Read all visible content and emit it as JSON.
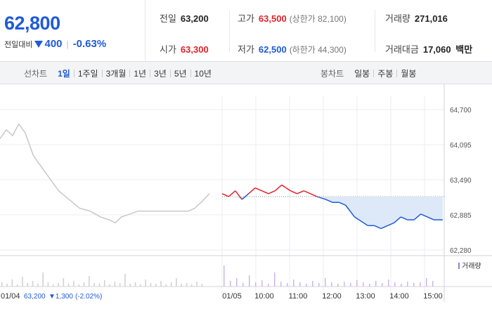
{
  "summary": {
    "price": "62,800",
    "change_label": "전일대비",
    "change_abs": "400",
    "change_pct": "-0.63%",
    "prev_close": {
      "label": "전일",
      "value": "63,200"
    },
    "open": {
      "label": "시가",
      "value": "63,300"
    },
    "high": {
      "label": "고가",
      "value": "63,500",
      "sub": "(상한가 82,100)"
    },
    "low": {
      "label": "저가",
      "value": "62,500",
      "sub": "(하한가 44,300)"
    },
    "volume": {
      "label": "거래량",
      "value": "271,016"
    },
    "amount": {
      "label": "거래대금",
      "value": "17,060",
      "unit": "백만"
    },
    "colors": {
      "up": "#e0222a",
      "down": "#1f5bd6"
    }
  },
  "toolbar": {
    "line_label": "선차트",
    "line_periods": [
      "1일",
      "1주일",
      "3개월",
      "1년",
      "3년",
      "5년",
      "10년"
    ],
    "line_active": 0,
    "candle_label": "봉차트",
    "candle_periods": [
      "일봉",
      "주봉",
      "월봉"
    ]
  },
  "chart_data": {
    "type": "line",
    "y_ticks": [
      "64,700",
      "64,095",
      "63,490",
      "62,885",
      "62,280"
    ],
    "y_tick_values": [
      64700,
      64095,
      63490,
      62885,
      62280
    ],
    "ylim": [
      62280,
      64700
    ],
    "reference_price": 63200,
    "x_labels": [
      "01/04",
      "01/05",
      "10:00",
      "11:00",
      "12:00",
      "13:00",
      "14:00",
      "15:00"
    ],
    "prev_day_info": {
      "date": "01/04",
      "close": "63,200",
      "change": "▼1,300",
      "pct": "(-2.02%)"
    },
    "volume_legend": "거래량",
    "series": [
      {
        "day": "01/04",
        "color": "#c8c8c8",
        "points": [
          [
            0,
            64200
          ],
          [
            0.03,
            64350
          ],
          [
            0.06,
            64250
          ],
          [
            0.09,
            64450
          ],
          [
            0.12,
            64300
          ],
          [
            0.16,
            63900
          ],
          [
            0.2,
            63700
          ],
          [
            0.24,
            63500
          ],
          [
            0.28,
            63300
          ],
          [
            0.33,
            63150
          ],
          [
            0.38,
            63000
          ],
          [
            0.43,
            62950
          ],
          [
            0.48,
            62850
          ],
          [
            0.52,
            62800
          ],
          [
            0.55,
            62750
          ],
          [
            0.58,
            62850
          ],
          [
            0.62,
            62900
          ],
          [
            0.66,
            62950
          ],
          [
            0.7,
            62950
          ],
          [
            0.75,
            62950
          ],
          [
            0.8,
            62950
          ],
          [
            0.85,
            62950
          ],
          [
            0.9,
            62950
          ],
          [
            0.93,
            63000
          ],
          [
            0.96,
            63100
          ],
          [
            1,
            63250
          ]
        ]
      },
      {
        "day": "01/05",
        "points": [
          [
            0,
            63250
          ],
          [
            0.03,
            63200
          ],
          [
            0.06,
            63300
          ],
          [
            0.09,
            63150
          ],
          [
            0.12,
            63250
          ],
          [
            0.15,
            63350
          ],
          [
            0.18,
            63300
          ],
          [
            0.21,
            63250
          ],
          [
            0.24,
            63300
          ],
          [
            0.27,
            63400
          ],
          [
            0.29,
            63350
          ],
          [
            0.31,
            63300
          ],
          [
            0.34,
            63250
          ],
          [
            0.37,
            63300
          ],
          [
            0.4,
            63250
          ],
          [
            0.43,
            63200
          ],
          [
            0.47,
            63150
          ],
          [
            0.5,
            63100
          ],
          [
            0.53,
            63100
          ],
          [
            0.56,
            63050
          ],
          [
            0.58,
            62950
          ],
          [
            0.6,
            62850
          ],
          [
            0.62,
            62800
          ],
          [
            0.64,
            62750
          ],
          [
            0.66,
            62700
          ],
          [
            0.69,
            62700
          ],
          [
            0.72,
            62650
          ],
          [
            0.75,
            62700
          ],
          [
            0.78,
            62750
          ],
          [
            0.81,
            62850
          ],
          [
            0.84,
            62800
          ],
          [
            0.87,
            62800
          ],
          [
            0.9,
            62900
          ],
          [
            0.93,
            62850
          ],
          [
            0.96,
            62800
          ],
          [
            1,
            62800
          ]
        ]
      }
    ]
  }
}
